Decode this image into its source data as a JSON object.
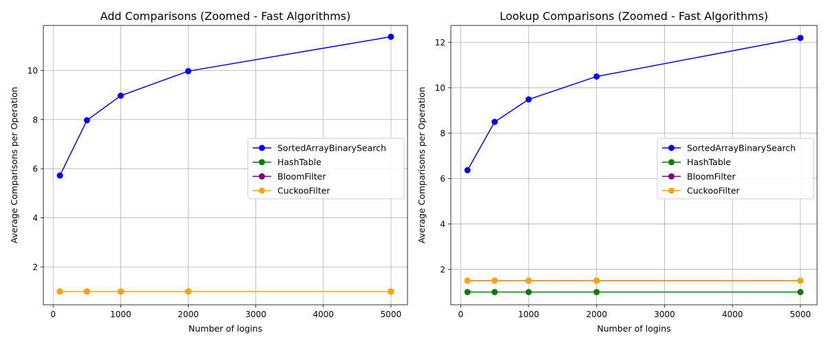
{
  "chart_data": [
    {
      "type": "line",
      "title": "Add Comparisons (Zoomed - Fast Algorithms)",
      "xlabel": "Number of logins",
      "ylabel": "Average Comparisons per Operation",
      "x": [
        100,
        500,
        1000,
        2000,
        5000
      ],
      "xlim": [
        -145,
        5245
      ],
      "ylim": [
        0.46,
        11.83
      ],
      "xticks": [
        0,
        1000,
        2000,
        3000,
        4000,
        5000
      ],
      "yticks": [
        2,
        4,
        6,
        8,
        10
      ],
      "grid": true,
      "legend_position": "center-right",
      "series": [
        {
          "name": "SortedArrayBinarySearch",
          "color": "#0000ff",
          "values": [
            5.72,
            7.97,
            8.97,
            9.97,
            11.37
          ]
        },
        {
          "name": "HashTable",
          "color": "#008000",
          "values": [
            1.0,
            1.0,
            1.0,
            1.0,
            1.0
          ]
        },
        {
          "name": "BloomFilter",
          "color": "#800080",
          "values": [
            1.0,
            1.0,
            1.0,
            1.0,
            1.0
          ]
        },
        {
          "name": "CuckooFilter",
          "color": "#ffa500",
          "values": [
            1.0,
            1.0,
            1.0,
            1.0,
            1.0
          ]
        }
      ]
    },
    {
      "type": "line",
      "title": "Lookup Comparisons (Zoomed - Fast Algorithms)",
      "xlabel": "Number of logins",
      "ylabel": "Average Comparisons per Operation",
      "x": [
        100,
        500,
        1000,
        2000,
        5000
      ],
      "xlim": [
        -145,
        5245
      ],
      "ylim": [
        0.44,
        12.75
      ],
      "xticks": [
        0,
        1000,
        2000,
        3000,
        4000,
        5000
      ],
      "yticks": [
        2,
        4,
        6,
        8,
        10,
        12
      ],
      "grid": true,
      "legend_position": "center-right",
      "series": [
        {
          "name": "SortedArrayBinarySearch",
          "color": "#0000ff",
          "values": [
            6.37,
            8.5,
            9.49,
            10.5,
            12.2
          ]
        },
        {
          "name": "HashTable",
          "color": "#008000",
          "values": [
            1.0,
            1.0,
            1.0,
            1.0,
            1.0
          ]
        },
        {
          "name": "BloomFilter",
          "color": "#800080",
          "values": [
            1.5,
            1.5,
            1.5,
            1.5,
            1.5
          ]
        },
        {
          "name": "CuckooFilter",
          "color": "#ffa500",
          "values": [
            1.5,
            1.5,
            1.5,
            1.5,
            1.5
          ]
        }
      ]
    }
  ]
}
